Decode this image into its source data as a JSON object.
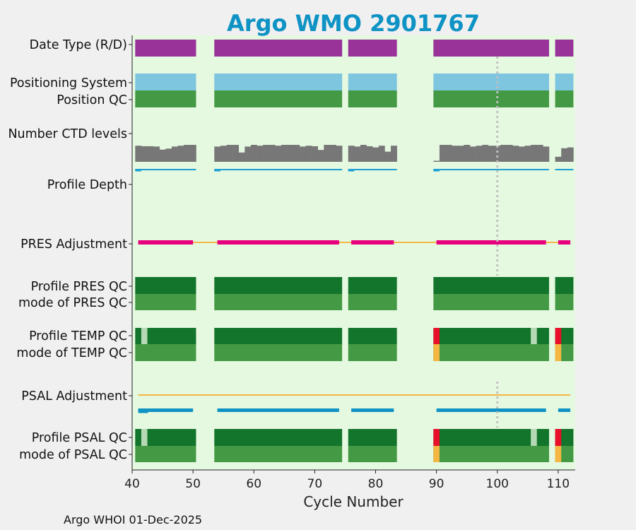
{
  "chart_data": {
    "type": "bar",
    "title": "Argo WMO 2901767",
    "xlabel": "Cycle Number",
    "xlim": [
      40,
      112.8
    ],
    "xticks": [
      40,
      50,
      60,
      70,
      80,
      90,
      100,
      110
    ],
    "xtick_labels": [
      "40",
      "50",
      "60",
      "70",
      "80",
      "90",
      "100",
      "110"
    ],
    "footer": "Argo WHOI 01-Dec-2025",
    "marker_cycle": 100,
    "cycle_runs": [
      [
        41,
        50
      ],
      [
        54,
        74
      ],
      [
        76,
        83
      ],
      [
        90,
        108
      ],
      [
        110,
        112
      ]
    ],
    "rows": [
      {
        "label": "Date Type (R/D)",
        "color": "#993399"
      },
      {
        "label": "Positioning System",
        "color": "#7ec5e0"
      },
      {
        "label": "Position QC",
        "color": "#449944"
      },
      {
        "label": "Number CTD levels",
        "color": "#777777"
      },
      {
        "label": "Profile Depth",
        "color": "#1a9fd4"
      },
      {
        "label": "PRES Adjustment",
        "color": "#e6007e"
      },
      {
        "label": "Profile PRES QC",
        "color": "#13742b"
      },
      {
        "label": "mode of PRES QC",
        "color": "#449944"
      },
      {
        "label": "Profile TEMP QC",
        "color": "#13742b"
      },
      {
        "label": "mode of TEMP QC",
        "color": "#449944"
      },
      {
        "label": "PSAL Adjustment",
        "color": "#f5b642"
      },
      {
        "label": "Profile PSAL QC",
        "color": "#13742b"
      },
      {
        "label": "mode of PSAL QC",
        "color": "#449944"
      }
    ],
    "ctd_levels": {
      "values": [
        [
          41,
          0.95
        ],
        [
          42,
          0.92
        ],
        [
          43,
          0.92
        ],
        [
          44,
          0.9
        ],
        [
          45,
          0.72
        ],
        [
          46,
          0.78
        ],
        [
          47,
          0.9
        ],
        [
          48,
          0.95
        ],
        [
          49,
          1.0
        ],
        [
          50,
          1.0
        ],
        [
          54,
          0.9
        ],
        [
          55,
          0.95
        ],
        [
          56,
          1.0
        ],
        [
          57,
          1.0
        ],
        [
          58,
          0.55
        ],
        [
          59,
          0.9
        ],
        [
          60,
          1.0
        ],
        [
          61,
          0.95
        ],
        [
          62,
          1.0
        ],
        [
          63,
          1.0
        ],
        [
          64,
          0.95
        ],
        [
          65,
          1.0
        ],
        [
          66,
          1.0
        ],
        [
          67,
          1.0
        ],
        [
          68,
          0.9
        ],
        [
          69,
          0.95
        ],
        [
          70,
          0.92
        ],
        [
          71,
          0.7
        ],
        [
          72,
          1.0
        ],
        [
          73,
          1.0
        ],
        [
          74,
          0.95
        ],
        [
          76,
          0.95
        ],
        [
          77,
          0.9
        ],
        [
          78,
          1.0
        ],
        [
          79,
          0.92
        ],
        [
          80,
          0.85
        ],
        [
          81,
          0.95
        ],
        [
          82,
          0.6
        ],
        [
          83,
          0.95
        ],
        [
          90,
          0.05
        ],
        [
          91,
          1.0
        ],
        [
          92,
          1.0
        ],
        [
          93,
          0.95
        ],
        [
          94,
          0.95
        ],
        [
          95,
          1.0
        ],
        [
          96,
          0.9
        ],
        [
          97,
          0.95
        ],
        [
          98,
          1.0
        ],
        [
          99,
          0.95
        ],
        [
          100,
          0.95
        ],
        [
          101,
          1.0
        ],
        [
          102,
          1.0
        ],
        [
          103,
          0.95
        ],
        [
          104,
          0.9
        ],
        [
          105,
          0.95
        ],
        [
          106,
          1.0
        ],
        [
          107,
          1.0
        ],
        [
          108,
          0.9
        ],
        [
          110,
          0.3
        ],
        [
          111,
          0.8
        ],
        [
          112,
          0.85
        ]
      ]
    },
    "profile_depth": {
      "color": "#1a9fd4",
      "dips": [
        41,
        54,
        76,
        90
      ]
    },
    "pres_adjustment": {
      "baseline_color": "#f5b642",
      "segment_color": "#e6007e",
      "segments": [
        [
          41,
          50
        ],
        [
          54,
          74
        ],
        [
          76,
          83
        ],
        [
          90,
          108
        ],
        [
          110,
          112
        ]
      ]
    },
    "psal_adjustment": {
      "baseline_color": "#f5b642",
      "segment_color": "#0e93c4",
      "segments": [
        [
          41,
          50
        ],
        [
          54,
          74
        ],
        [
          76,
          83
        ],
        [
          90,
          108
        ],
        [
          110,
          112
        ]
      ]
    },
    "qc_colors": {
      "good": "#13742b",
      "mode_good": "#449944",
      "probably_good": "#b5d9b5",
      "bad": "#e8102a",
      "mode_bad": "#f5b642"
    },
    "temp_qc_exceptions": [
      {
        "cycle": 42,
        "code": "probably_good"
      },
      {
        "cycle": 90,
        "code": "bad"
      },
      {
        "cycle": 106,
        "code": "probably_good"
      },
      {
        "cycle": 110,
        "code": "bad"
      }
    ],
    "temp_mode_exceptions": [
      {
        "cycle": 90,
        "code": "mode_bad"
      },
      {
        "cycle": 110,
        "code": "mode_bad"
      }
    ],
    "psal_qc_exceptions": [
      {
        "cycle": 42,
        "code": "probably_good"
      },
      {
        "cycle": 90,
        "code": "bad"
      },
      {
        "cycle": 106,
        "code": "probably_good"
      },
      {
        "cycle": 110,
        "code": "bad"
      }
    ],
    "psal_mode_exceptions": [
      {
        "cycle": 90,
        "code": "mode_bad"
      },
      {
        "cycle": 110,
        "code": "mode_bad"
      }
    ]
  },
  "colors": {
    "title": "#0e93c4",
    "plot_bg": "#e5f8e0",
    "page_bg": "#f0f0f0",
    "marker_line": "#c0c0c0"
  }
}
